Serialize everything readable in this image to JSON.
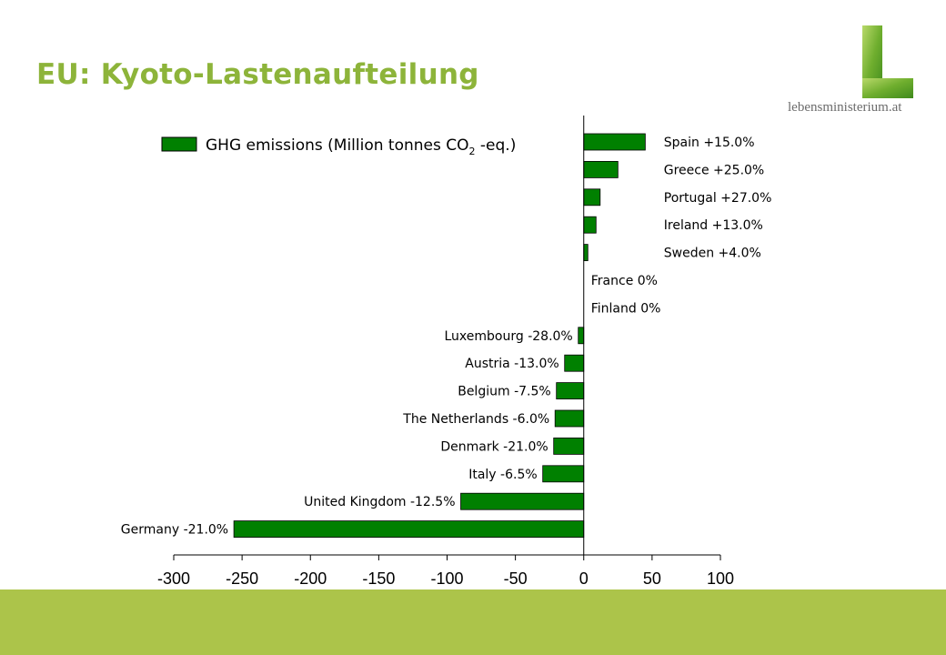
{
  "slide": {
    "title": "EU: Kyoto-Lastenaufteilung",
    "logo_text": "lebensministerium.at"
  },
  "colors": {
    "title": "#8db43a",
    "bar": "#008000",
    "footer": "#acc44a"
  },
  "chart_data": {
    "type": "bar",
    "orientation": "horizontal",
    "title": "",
    "legend": {
      "prefix": "GHG  emissions (Million tonnes CO",
      "subscript": "2",
      "suffix": " -eq.)",
      "placement": "top-left"
    },
    "xlim": [
      -300,
      100
    ],
    "xticks": [
      "-300",
      "-250",
      "-200",
      "-150",
      "-100",
      "-50",
      "0",
      "50",
      "100"
    ],
    "grid": false,
    "categories": [
      "Spain  +15.0%",
      "Greece  +25.0%",
      "Portugal  +27.0%",
      "Ireland  +13.0%",
      "Sweden  +4.0%",
      "France  0%",
      "Finland  0%",
      "Luxembourg  -28.0%",
      "Austria  -13.0%",
      "Belgium  -7.5%",
      "The Netherlands  -6.0%",
      "Denmark  -21.0%",
      "Italy  -6.5%",
      "United Kingdom  -12.5%",
      "Germany  -21.0%"
    ],
    "values": [
      45,
      25,
      12,
      9,
      3,
      0,
      0,
      -4,
      -14,
      -20,
      -21,
      -22,
      -30,
      -90,
      -256
    ]
  }
}
